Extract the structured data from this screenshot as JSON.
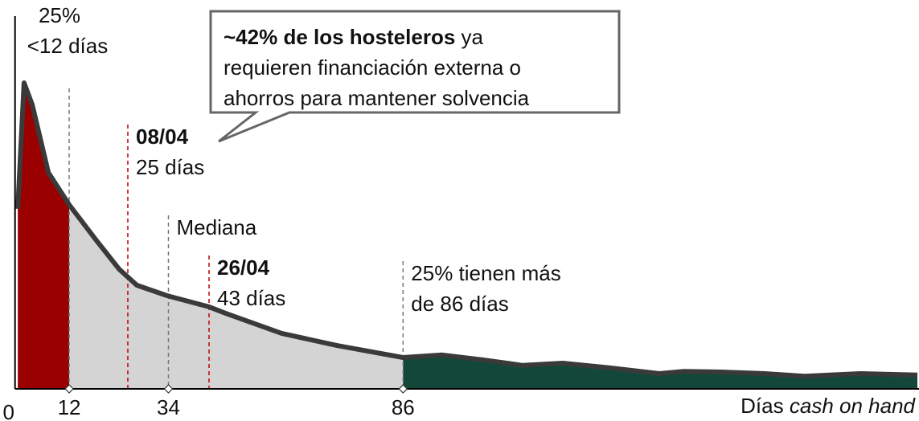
{
  "chart_data": {
    "type": "area",
    "x": [
      0.6,
      2.0,
      3.8,
      7.4,
      12.0,
      18.1,
      23.1,
      27.0,
      33.7,
      43.0,
      46.6,
      59.1,
      71.5,
      86.0,
      94.7,
      103.6,
      112.5,
      121.4,
      132.1,
      142.8,
      148.2,
      157.1,
      166.1,
      175.0,
      187.4,
      200.0
    ],
    "values": [
      48.3,
      82.1,
      76.3,
      58.0,
      49.4,
      39.7,
      32.1,
      27.8,
      25.0,
      22.0,
      20.3,
      14.9,
      11.6,
      8.4,
      9.1,
      7.8,
      6.3,
      6.9,
      5.6,
      4.1,
      4.7,
      4.5,
      4.1,
      3.4,
      4.1,
      3.7
    ],
    "line_color": "#3a3a3a",
    "regions": [
      {
        "xlim": [
          0,
          12
        ],
        "color": "#9b0000"
      },
      {
        "xlim": [
          12,
          86
        ],
        "color": "#d4d4d4"
      },
      {
        "xlim": [
          86,
          200
        ],
        "color": "#13473a"
      }
    ],
    "xlim": [
      0,
      200
    ],
    "ylim": [
      0,
      100
    ],
    "xticks": [
      0,
      12,
      34,
      86
    ],
    "xlabel": "Días",
    "xlabel_italic": "cash on hand",
    "markers": [
      {
        "x": 12,
        "color": "#777777",
        "lines": [
          "25%",
          "<12 días"
        ]
      },
      {
        "x": 25,
        "color": "#c00000",
        "bold": "08/04",
        "lines": [
          "25 días"
        ]
      },
      {
        "x": 34,
        "color": "#777777",
        "lines": [
          "Mediana"
        ]
      },
      {
        "x": 43,
        "color": "#c00000",
        "bold": "26/04",
        "lines": [
          "43 días"
        ]
      },
      {
        "x": 86,
        "color": "#777777",
        "lines": [
          "25% tienen más",
          "de 86 días"
        ]
      }
    ],
    "callout": {
      "bold": "~42% de los hosteleros",
      "first": " ya",
      "lines": [
        "requieren financiación externa o",
        "ahorros para mantener solvencia"
      ]
    }
  }
}
